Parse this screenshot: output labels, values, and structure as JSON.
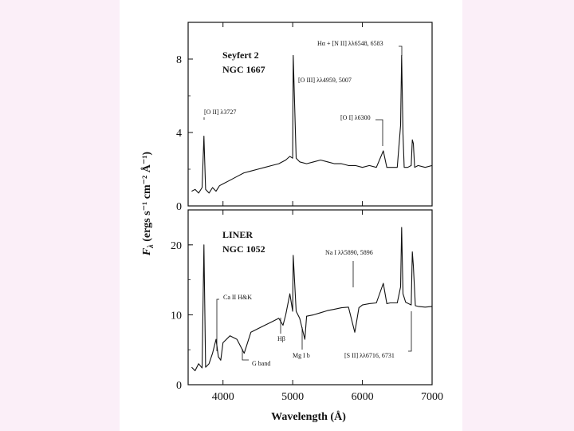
{
  "chart_data": [
    {
      "type": "line",
      "panel": "top",
      "title": [
        "Seyfert 2",
        "NGC 1667"
      ],
      "ylim": [
        0,
        10
      ],
      "yticks": [
        0,
        4,
        8
      ],
      "series": [
        {
          "x": [
            3550,
            3600,
            3650,
            3700,
            3727,
            3750,
            3800,
            3850,
            3900,
            3950,
            4000,
            4100,
            4200,
            4300,
            4400,
            4500,
            4600,
            4700,
            4800,
            4900,
            4959,
            5000,
            5007,
            5050,
            5100,
            5200,
            5300,
            5400,
            5500,
            5600,
            5700,
            5800,
            5900,
            6000,
            6100,
            6200,
            6300,
            6350,
            6400,
            6500,
            6548,
            6563,
            6583,
            6600,
            6650,
            6700,
            6716,
            6731,
            6750,
            6800,
            6900,
            7000
          ],
          "y": [
            0.8,
            0.9,
            0.7,
            1.0,
            3.8,
            0.9,
            0.7,
            1.0,
            0.8,
            1.1,
            1.2,
            1.4,
            1.6,
            1.8,
            1.9,
            2.0,
            2.1,
            2.2,
            2.3,
            2.5,
            2.7,
            2.6,
            8.2,
            2.6,
            2.4,
            2.3,
            2.4,
            2.5,
            2.4,
            2.3,
            2.3,
            2.2,
            2.2,
            2.1,
            2.2,
            2.1,
            3.0,
            2.1,
            2.1,
            2.1,
            4.4,
            8.2,
            3.9,
            2.1,
            2.1,
            2.2,
            3.6,
            3.4,
            2.1,
            2.2,
            2.1,
            2.2
          ]
        }
      ],
      "annotations": [
        {
          "text": "[O II] λ3727",
          "x": 3727
        },
        {
          "text": "[O III] λλ4959, 5007",
          "x": 5007
        },
        {
          "text": "[O I] λ6300",
          "x": 6300
        },
        {
          "text": "Hα + [N II] λλ6548, 6583",
          "x": 6563
        }
      ]
    },
    {
      "type": "line",
      "panel": "bottom",
      "title": [
        "LINER",
        "NGC 1052"
      ],
      "ylim": [
        0,
        25
      ],
      "yticks": [
        0,
        10,
        20
      ],
      "series": [
        {
          "x": [
            3550,
            3600,
            3650,
            3700,
            3727,
            3750,
            3800,
            3850,
            3900,
            3934,
            3968,
            4000,
            4100,
            4200,
            4304,
            4400,
            4500,
            4600,
            4700,
            4800,
            4861,
            4900,
            4959,
            5000,
            5007,
            5050,
            5100,
            5175,
            5200,
            5300,
            5400,
            5500,
            5600,
            5700,
            5800,
            5890,
            5896,
            5950,
            6000,
            6100,
            6200,
            6300,
            6350,
            6400,
            6500,
            6548,
            6563,
            6583,
            6620,
            6700,
            6716,
            6731,
            6760,
            6800,
            6900,
            7000
          ],
          "y": [
            2.5,
            2.0,
            3.0,
            2.4,
            20.0,
            2.5,
            3.0,
            4.5,
            6.5,
            4.0,
            3.5,
            6.0,
            7.0,
            6.5,
            4.5,
            7.5,
            8.0,
            8.5,
            9.0,
            9.5,
            8.5,
            10.0,
            13.0,
            10.5,
            18.5,
            10.5,
            9.5,
            6.5,
            9.8,
            10.0,
            10.3,
            10.6,
            10.8,
            11.0,
            11.1,
            7.5,
            7.8,
            11.0,
            11.4,
            11.6,
            11.7,
            14.5,
            11.6,
            11.7,
            11.7,
            14.0,
            22.5,
            13.0,
            11.8,
            11.4,
            19.0,
            17.0,
            11.3,
            11.2,
            11.1,
            11.2
          ]
        }
      ],
      "annotations": [
        {
          "text": "Ca II H&K",
          "x": 3950
        },
        {
          "text": "Hβ",
          "x": 4861
        },
        {
          "text": "Mg I b",
          "x": 5175
        },
        {
          "text": "Na I λλ5890, 5896",
          "x": 5893
        },
        {
          "text": "[S II] λλ6716, 6731",
          "x": 6723
        },
        {
          "text": "G band",
          "x": 4304
        }
      ]
    }
  ],
  "xaxis": {
    "label": "Wavelength (Å)",
    "xlim": [
      3500,
      7000
    ],
    "ticks": [
      4000,
      5000,
      6000,
      7000
    ]
  },
  "yaxis": {
    "label": "F_λ (ergs s⁻¹ cm⁻² Å⁻¹)"
  },
  "colors": {
    "slide_background": "#fbeff8",
    "ink": "#111111"
  }
}
